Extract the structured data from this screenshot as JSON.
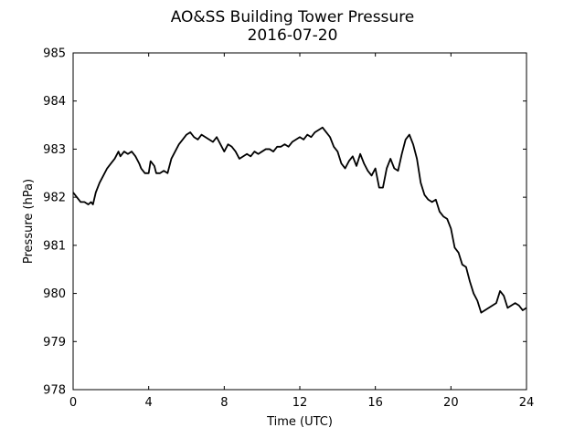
{
  "chart_data": {
    "type": "line",
    "title": "AO&SS Building Tower Pressure",
    "subtitle": "2016-07-20",
    "xlabel": "Time (UTC)",
    "ylabel": "Pressure (hPa)",
    "xlim": [
      0,
      24
    ],
    "ylim": [
      978,
      985
    ],
    "xticks": [
      "0",
      "4",
      "8",
      "12",
      "16",
      "20",
      "24"
    ],
    "yticks": [
      "978",
      "979",
      "980",
      "981",
      "982",
      "983",
      "984",
      "985"
    ],
    "grid": false,
    "line_color": "#000000",
    "series": [
      {
        "x": [
          0.0,
          0.2,
          0.4,
          0.6,
          0.8,
          0.95,
          1.05,
          1.2,
          1.4,
          1.6,
          1.8,
          2.0,
          2.2,
          2.4,
          2.5,
          2.7,
          2.9,
          3.1,
          3.3,
          3.5,
          3.6,
          3.8,
          4.0,
          4.1,
          4.3,
          4.4,
          4.6,
          4.8,
          5.0,
          5.2,
          5.4,
          5.6,
          5.8,
          6.0,
          6.2,
          6.4,
          6.6,
          6.8,
          7.0,
          7.2,
          7.4,
          7.6,
          7.8,
          8.0,
          8.2,
          8.4,
          8.6,
          8.8,
          9.0,
          9.2,
          9.4,
          9.6,
          9.8,
          10.0,
          10.2,
          10.4,
          10.6,
          10.8,
          11.0,
          11.2,
          11.4,
          11.6,
          11.8,
          12.0,
          12.2,
          12.4,
          12.6,
          12.8,
          13.0,
          13.2,
          13.4,
          13.6,
          13.8,
          14.0,
          14.2,
          14.4,
          14.6,
          14.8,
          15.0,
          15.2,
          15.4,
          15.6,
          15.8,
          16.0,
          16.2,
          16.4,
          16.6,
          16.8,
          17.0,
          17.2,
          17.4,
          17.6,
          17.8,
          18.0,
          18.2,
          18.4,
          18.6,
          18.8,
          19.0,
          19.2,
          19.4,
          19.6,
          19.8,
          20.0,
          20.2,
          20.4,
          20.6,
          20.8,
          21.0,
          21.2,
          21.4,
          21.6,
          21.8,
          22.0,
          22.2,
          22.4,
          22.6,
          22.8,
          23.0,
          23.2,
          23.4,
          23.6,
          23.8,
          24.0
        ],
        "values": [
          982.1,
          982.0,
          981.9,
          981.9,
          981.85,
          981.9,
          981.85,
          982.1,
          982.3,
          982.45,
          982.6,
          982.7,
          982.8,
          982.95,
          982.85,
          982.95,
          982.9,
          982.95,
          982.85,
          982.7,
          982.6,
          982.5,
          982.5,
          982.75,
          982.65,
          982.5,
          982.5,
          982.55,
          982.5,
          982.8,
          982.95,
          983.1,
          983.2,
          983.3,
          983.35,
          983.25,
          983.2,
          983.3,
          983.25,
          983.2,
          983.15,
          983.25,
          983.1,
          982.95,
          983.1,
          983.05,
          982.95,
          982.8,
          982.85,
          982.9,
          982.85,
          982.95,
          982.9,
          982.95,
          983.0,
          983.0,
          982.95,
          983.05,
          983.05,
          983.1,
          983.05,
          983.15,
          983.2,
          983.25,
          983.2,
          983.3,
          983.25,
          983.35,
          983.4,
          983.45,
          983.35,
          983.25,
          983.05,
          982.95,
          982.7,
          982.6,
          982.75,
          982.85,
          982.65,
          982.9,
          982.7,
          982.55,
          982.45,
          982.6,
          982.2,
          982.2,
          982.6,
          982.8,
          982.6,
          982.55,
          982.9,
          983.2,
          983.3,
          983.1,
          982.8,
          982.3,
          982.05,
          981.95,
          981.9,
          981.95,
          981.7,
          981.6,
          981.55,
          981.35,
          980.95,
          980.85,
          980.6,
          980.55,
          980.25,
          980.0,
          979.85,
          979.6,
          979.65,
          979.7,
          979.75,
          979.8,
          980.05,
          979.95,
          979.7,
          979.75,
          979.8,
          979.75,
          979.65,
          979.7
        ]
      }
    ]
  }
}
